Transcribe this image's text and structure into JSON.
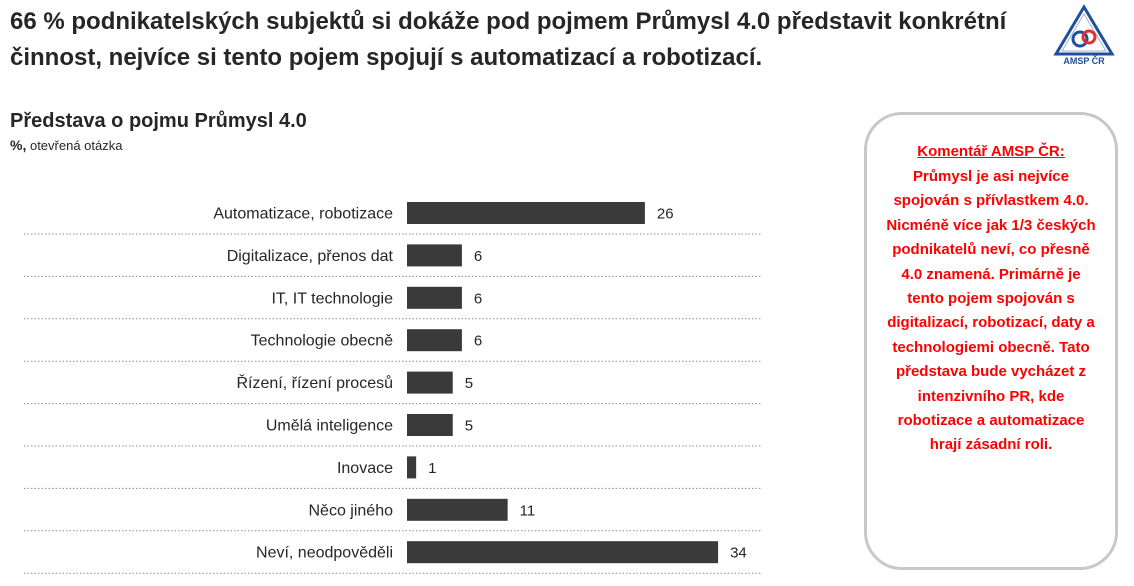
{
  "headline": "66 % podnikatelských subjektů si dokáže pod pojmem Průmysl 4.0 představit konkrétní činnost, nejvíce si tento pojem spojují s automatizací a robotizací.",
  "logo": {
    "text": "AMSP ČR",
    "icon": "amsp-logo-triangle-icon"
  },
  "chart_data": {
    "type": "bar",
    "orientation": "horizontal",
    "title": "Představa o pojmu Průmysl 4.0",
    "unit": "%,",
    "subtitle": "otevřená otázka",
    "categories": [
      "Automatizace, robotizace",
      "Digitalizace, přenos dat",
      "IT, IT technologie",
      "Technologie obecně",
      "Řízení, řízení procesů",
      "Umělá inteligence",
      "Inovace",
      "Něco jiného",
      "Neví, neodpověděli"
    ],
    "values": [
      26,
      6,
      6,
      6,
      5,
      5,
      1,
      11,
      34
    ],
    "bar_color": "#3a3a3a",
    "grid": false,
    "separators": "dotted"
  },
  "comment": {
    "title": "Komentář AMSP ČR:",
    "text": "Průmysl je asi nejvíce spojován s přívlastkem 4.0. Nicméně více jak 1/3 českých podnikatelů neví, co přesně 4.0 znamená. Primárně je tento pojem spojován s digitalizací, robotizací, daty a technologiemi obecně. Tato představa bude vycházet z intenzivního PR, kde robotizace a automatizace hrají zásadní roli.",
    "color": "#ff0000"
  }
}
